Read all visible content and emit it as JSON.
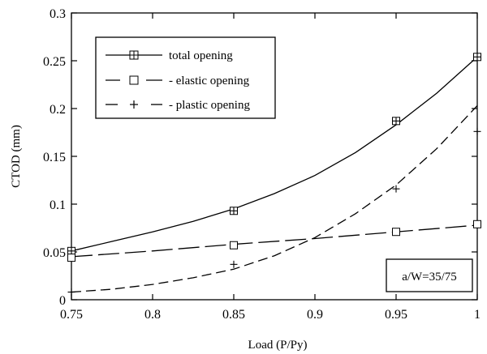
{
  "chart_data": {
    "type": "line",
    "xlabel": "Load (P/Py)",
    "ylabel": "CTOD (mm)",
    "xlim": [
      0.75,
      1.0
    ],
    "ylim": [
      0,
      0.3
    ],
    "xticks": [
      0.75,
      0.8,
      0.85,
      0.9,
      0.95,
      1.0
    ],
    "xtick_labels": [
      "0.75",
      "0.8",
      "0.85",
      "0.9",
      "0.95",
      "1"
    ],
    "yticks": [
      0,
      0.05,
      0.1,
      0.15,
      0.2,
      0.25,
      0.3
    ],
    "ytick_labels": [
      "0",
      "0.05",
      "0.1",
      "0.15",
      "0.2",
      "0.25",
      "0.3"
    ],
    "grid": false,
    "legend_position": "top-left",
    "annotation": "a/W=35/75",
    "series": [
      {
        "name": "total opening",
        "line_style": "solid",
        "marker": "boxed-plus",
        "x": [
          0.75,
          0.85,
          0.95,
          1.0
        ],
        "y": [
          0.051,
          0.093,
          0.187,
          0.254
        ],
        "curve_x": [
          0.75,
          0.775,
          0.8,
          0.825,
          0.85,
          0.875,
          0.9,
          0.925,
          0.95,
          0.975,
          1.0
        ],
        "curve_y": [
          0.051,
          0.061,
          0.071,
          0.082,
          0.095,
          0.111,
          0.13,
          0.154,
          0.183,
          0.216,
          0.254
        ]
      },
      {
        "name": "- elastic opening",
        "line_style": "long-dash",
        "marker": "square",
        "x": [
          0.75,
          0.85,
          0.95,
          1.0
        ],
        "y": [
          0.044,
          0.057,
          0.071,
          0.079
        ],
        "curve_x": [
          0.75,
          0.8,
          0.85,
          0.9,
          0.95,
          1.0
        ],
        "curve_y": [
          0.045,
          0.051,
          0.058,
          0.064,
          0.071,
          0.078
        ]
      },
      {
        "name": "- plastic opening",
        "line_style": "short-dash",
        "marker": "plus",
        "x": [
          0.75,
          0.85,
          0.95,
          1.0
        ],
        "y": [
          0.008,
          0.037,
          0.116,
          0.176
        ],
        "curve_x": [
          0.75,
          0.775,
          0.8,
          0.825,
          0.85,
          0.875,
          0.9,
          0.925,
          0.95,
          0.975,
          1.0
        ],
        "curve_y": [
          0.008,
          0.011,
          0.016,
          0.023,
          0.032,
          0.046,
          0.065,
          0.09,
          0.12,
          0.158,
          0.203
        ]
      }
    ]
  }
}
